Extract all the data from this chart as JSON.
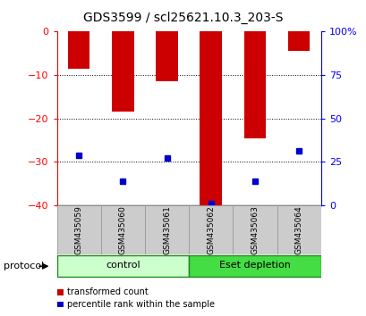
{
  "title": "GDS3599 / scl25621.10.3_203-S",
  "samples": [
    "GSM435059",
    "GSM435060",
    "GSM435061",
    "GSM435062",
    "GSM435063",
    "GSM435064"
  ],
  "transformed_count": [
    -8.5,
    -18.5,
    -11.5,
    -40.0,
    -24.5,
    -4.5
  ],
  "percentile_rank_left": [
    -28.5,
    -34.5,
    -29.0,
    -39.5,
    -34.5,
    -27.5
  ],
  "ylim_left": [
    -40,
    0
  ],
  "ylim_right": [
    0,
    100
  ],
  "yticks_left": [
    0,
    -10,
    -20,
    -30,
    -40
  ],
  "yticks_right": [
    0,
    25,
    50,
    75,
    100
  ],
  "bar_color": "#cc0000",
  "dot_color": "#0000cc",
  "bar_width": 0.5,
  "bg_color": "#ffffff",
  "protocol_groups": [
    {
      "label": "control",
      "indices": [
        0,
        1,
        2
      ],
      "color": "#ccffcc",
      "edge": "#228822"
    },
    {
      "label": "Eset depletion",
      "indices": [
        3,
        4,
        5
      ],
      "color": "#44dd44",
      "edge": "#228822"
    }
  ],
  "legend_items": [
    {
      "label": "transformed count",
      "color": "#cc0000"
    },
    {
      "label": "percentile rank within the sample",
      "color": "#0000cc"
    }
  ],
  "protocol_label": "protocol",
  "sample_bg_color": "#cccccc",
  "title_fontsize": 10,
  "tick_fontsize": 8,
  "legend_fontsize": 7
}
